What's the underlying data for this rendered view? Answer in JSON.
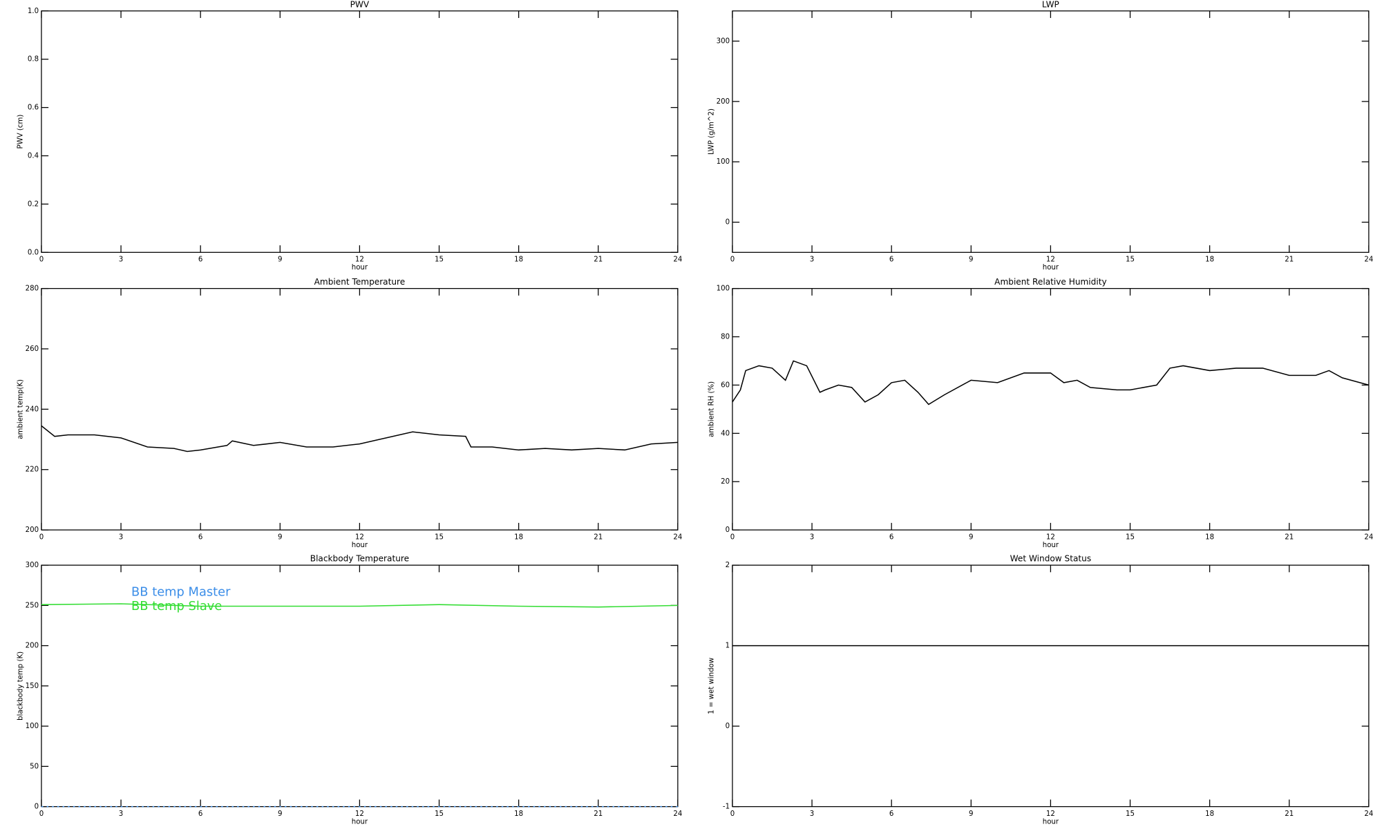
{
  "chart_data": [
    {
      "type": "line",
      "title": "PWV",
      "xlabel": "hour",
      "ylabel": "PWV (cm)",
      "xlim": [
        0,
        24
      ],
      "xticks": [
        0,
        3,
        6,
        9,
        12,
        15,
        18,
        21,
        24
      ],
      "ylim": [
        0,
        1
      ],
      "yticks": [
        {
          "value": 0,
          "label": "0.0"
        },
        {
          "value": 0.2,
          "label": "0.2"
        },
        {
          "value": 0.4,
          "label": "0.4"
        },
        {
          "value": 0.6,
          "label": "0.6"
        },
        {
          "value": 0.8,
          "label": "0.8"
        },
        {
          "value": 1,
          "label": "1.0"
        }
      ],
      "x": [],
      "series": []
    },
    {
      "type": "line",
      "title": "LWP",
      "xlabel": "hour",
      "ylabel": "LWP (g/m^2)",
      "xlim": [
        0,
        24
      ],
      "xticks": [
        0,
        3,
        6,
        9,
        12,
        15,
        18,
        21,
        24
      ],
      "ylim": [
        -50,
        350
      ],
      "yticks": [
        0,
        100,
        200,
        300
      ],
      "x": [],
      "series": []
    },
    {
      "type": "line",
      "title": "Ambient Temperature",
      "xlabel": "hour",
      "ylabel": "ambient temp(K)",
      "xlim": [
        0,
        24
      ],
      "xticks": [
        0,
        3,
        6,
        9,
        12,
        15,
        18,
        21,
        24
      ],
      "ylim": [
        200,
        280
      ],
      "yticks": [
        200,
        220,
        240,
        260,
        280
      ],
      "x": [
        0,
        0.5,
        1,
        2,
        3,
        4,
        5,
        5.5,
        6,
        7,
        7.2,
        8,
        9,
        10,
        11,
        12,
        13,
        14,
        15,
        16,
        16.2,
        17,
        18,
        19,
        20,
        21,
        22,
        23,
        24
      ],
      "series": [
        {
          "name": "ambient temp",
          "color": "#000000",
          "values": [
            234.5,
            231,
            231.5,
            231.5,
            230.5,
            227.5,
            227,
            226,
            226.5,
            228,
            229.5,
            228,
            229,
            227.5,
            227.5,
            228.5,
            230.5,
            232.5,
            231.5,
            231,
            227.5,
            227.5,
            226.5,
            227,
            226.5,
            227,
            226.5,
            228.5,
            229
          ]
        }
      ]
    },
    {
      "type": "line",
      "title": "Ambient Relative Humidity",
      "xlabel": "hour",
      "ylabel": "ambient RH (%)",
      "xlim": [
        0,
        24
      ],
      "xticks": [
        0,
        3,
        6,
        9,
        12,
        15,
        18,
        21,
        24
      ],
      "ylim": [
        0,
        100
      ],
      "yticks": [
        0,
        20,
        40,
        60,
        80,
        100
      ],
      "x": [
        0,
        0.3,
        0.5,
        1,
        1.5,
        2,
        2.3,
        2.8,
        3.3,
        3.5,
        4,
        4.5,
        5,
        5.5,
        6,
        6.5,
        7,
        7.4,
        8,
        9,
        10,
        11,
        12,
        12.5,
        13,
        13.5,
        14.5,
        15,
        16,
        16.5,
        17,
        18,
        19,
        20,
        21,
        22,
        22.5,
        23,
        24
      ],
      "series": [
        {
          "name": "ambient RH",
          "color": "#000000",
          "values": [
            53,
            58,
            66,
            68,
            67,
            62,
            70,
            68,
            57,
            58,
            60,
            59,
            53,
            56,
            61,
            62,
            57,
            52,
            56,
            62,
            61,
            65,
            65,
            61,
            62,
            59,
            58,
            58,
            60,
            67,
            68,
            66,
            67,
            67,
            64,
            64,
            66,
            63,
            60
          ]
        }
      ]
    },
    {
      "type": "line",
      "title": "Blackbody Temperature",
      "xlabel": "hour",
      "ylabel": "blackbody temp (K)",
      "xlim": [
        0,
        24
      ],
      "xticks": [
        0,
        3,
        6,
        9,
        12,
        15,
        18,
        21,
        24
      ],
      "ylim": [
        0,
        300
      ],
      "yticks": [
        0,
        50,
        100,
        150,
        200,
        250,
        300
      ],
      "legend": "upper left",
      "x": [
        0,
        3,
        6,
        9,
        12,
        15,
        18,
        21,
        24
      ],
      "series": [
        {
          "name": "BB temp Master",
          "color": "#3c8ee8",
          "values": [
            0,
            0,
            0,
            0,
            0,
            0,
            0,
            0,
            0
          ]
        },
        {
          "name": "BB temp Slave",
          "color": "#33dd33",
          "values": [
            251,
            252,
            249,
            249,
            249,
            251,
            249,
            248,
            250
          ]
        }
      ]
    },
    {
      "type": "line",
      "title": "Wet Window Status",
      "xlabel": "hour",
      "ylabel": "1 = wet window",
      "xlim": [
        0,
        24
      ],
      "xticks": [
        0,
        3,
        6,
        9,
        12,
        15,
        18,
        21,
        24
      ],
      "ylim": [
        -1,
        2
      ],
      "yticks": [
        -1,
        0,
        1,
        2
      ],
      "x": [
        0,
        24
      ],
      "series": [
        {
          "name": "wet window",
          "color": "#000000",
          "values": [
            1,
            1
          ]
        }
      ]
    }
  ]
}
